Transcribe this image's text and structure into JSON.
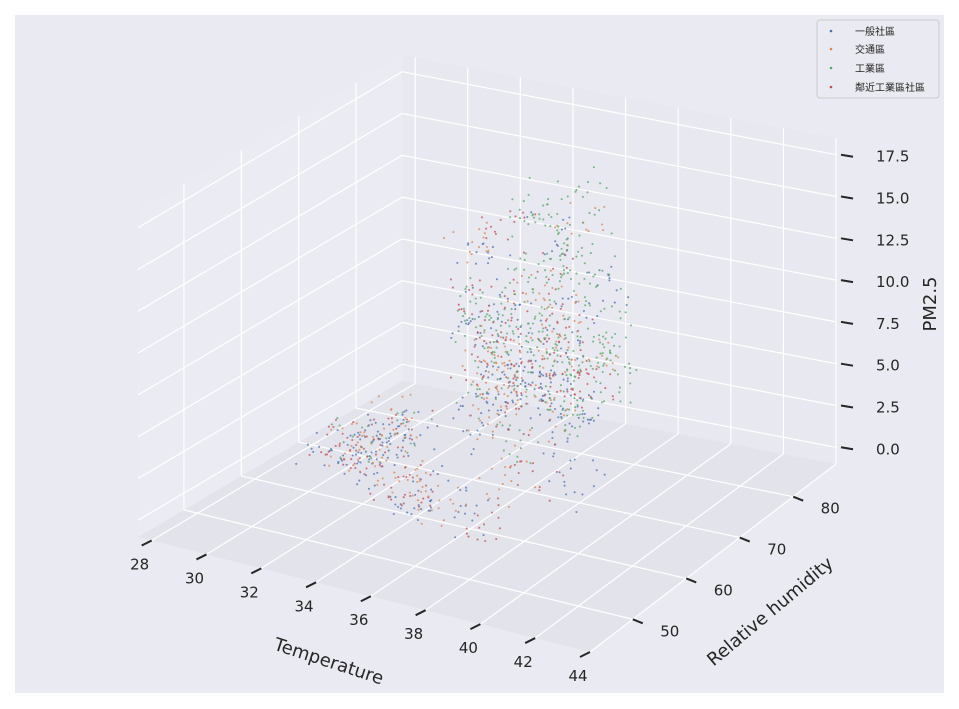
{
  "chart_data": {
    "type": "scatter",
    "projection": "3d",
    "title": "",
    "xlabel": "Temperature",
    "ylabel": "Relative humidity",
    "zlabel": "PM2.5",
    "xlim": [
      27.5,
      44
    ],
    "ylim": [
      42,
      88
    ],
    "zlim": [
      -1,
      18.5
    ],
    "x_ticks": [
      "28",
      "30",
      "32",
      "34",
      "36",
      "38",
      "40",
      "42",
      "44"
    ],
    "y_ticks": [
      "50",
      "60",
      "70",
      "80"
    ],
    "z_ticks": [
      "0.0",
      "2.5",
      "5.0",
      "7.5",
      "10.0",
      "12.5",
      "15.0",
      "17.5"
    ],
    "grid": true,
    "legend_position": "top-right",
    "series": [
      {
        "name": "一般社區",
        "color": "#4c72b0",
        "points": [
          [
            35.6,
            71,
            5.2
          ],
          [
            36.4,
            69,
            6.8
          ],
          [
            35.0,
            68,
            4.1
          ],
          [
            37.2,
            72,
            7.3
          ],
          [
            34.8,
            66,
            3.2
          ],
          [
            36.8,
            74,
            8.9
          ],
          [
            35.3,
            70,
            5.8
          ],
          [
            38.0,
            69,
            4.6
          ],
          [
            36.1,
            67,
            6.1
          ],
          [
            34.5,
            71,
            9.2
          ],
          [
            32.0,
            61,
            2.1
          ],
          [
            32.8,
            60,
            3.4
          ],
          [
            31.5,
            63,
            1.2
          ],
          [
            33.2,
            62,
            2.8
          ],
          [
            31.9,
            59,
            0.7
          ],
          [
            30.6,
            60,
            1.9
          ],
          [
            33.5,
            58,
            4.5
          ],
          [
            34.6,
            56,
            1.1
          ],
          [
            35.5,
            55,
            2.6
          ],
          [
            36.8,
            57,
            0.9
          ],
          [
            38.4,
            66,
            3.9
          ],
          [
            39.2,
            63,
            2.3
          ],
          [
            37.9,
            75,
            10.8
          ],
          [
            33.8,
            73,
            11.6
          ],
          [
            35.7,
            76,
            13.2
          ],
          [
            36.2,
            65,
            6.7
          ],
          [
            35.1,
            73,
            7.9
          ],
          [
            37.6,
            70,
            5.4
          ],
          [
            34.2,
            69,
            8.1
          ],
          [
            36.9,
            71,
            4.8
          ]
        ]
      },
      {
        "name": "交通區",
        "color": "#dd8452",
        "points": [
          [
            35.9,
            70,
            6.3
          ],
          [
            36.6,
            72,
            7.7
          ],
          [
            34.9,
            69,
            5.1
          ],
          [
            37.4,
            68,
            4.4
          ],
          [
            35.2,
            74,
            9.6
          ],
          [
            36.3,
            66,
            5.9
          ],
          [
            32.3,
            60,
            2.9
          ],
          [
            31.2,
            62,
            1.6
          ],
          [
            33.0,
            61,
            0.9
          ],
          [
            32.6,
            64,
            3.7
          ],
          [
            34.1,
            57,
            2.2
          ],
          [
            36.1,
            55,
            1.4
          ],
          [
            37.7,
            58,
            3.1
          ],
          [
            33.6,
            72,
            12.4
          ],
          [
            36.9,
            75,
            14.2
          ],
          [
            38.7,
            69,
            8.4
          ],
          [
            35.4,
            67,
            7.2
          ],
          [
            34.3,
            73,
            6.6
          ],
          [
            37.1,
            71,
            9.9
          ],
          [
            35.8,
            65,
            4.2
          ]
        ]
      },
      {
        "name": "工業區",
        "color": "#55a868",
        "points": [
          [
            35.8,
            71,
            7.6
          ],
          [
            36.5,
            73,
            8.4
          ],
          [
            37.3,
            72,
            6.2
          ],
          [
            36.0,
            70,
            9.1
          ],
          [
            37.8,
            74,
            7.1
          ],
          [
            35.4,
            69,
            8.8
          ],
          [
            36.7,
            68,
            5.7
          ],
          [
            38.2,
            71,
            6.9
          ],
          [
            34.9,
            72,
            10.3
          ],
          [
            36.2,
            75,
            11.4
          ],
          [
            37.5,
            76,
            9.7
          ],
          [
            35.6,
            74,
            12.1
          ],
          [
            36.9,
            70,
            8.2
          ],
          [
            38.6,
            73,
            7.8
          ],
          [
            37.0,
            67,
            6.4
          ],
          [
            34.4,
            70,
            7.3
          ],
          [
            35.1,
            75,
            13.6
          ],
          [
            37.9,
            69,
            5.1
          ],
          [
            36.4,
            77,
            10.6
          ],
          [
            33.9,
            71,
            9.4
          ],
          [
            39.0,
            72,
            6.1
          ],
          [
            36.1,
            72,
            15.8
          ],
          [
            32.9,
            63,
            3.3
          ],
          [
            31.6,
            61,
            2.6
          ],
          [
            35.3,
            66,
            4.9
          ],
          [
            37.2,
            64,
            3.8
          ],
          [
            38.8,
            66,
            5.3
          ],
          [
            36.6,
            78,
            11.9
          ],
          [
            34.7,
            68,
            8.6
          ],
          [
            37.6,
            73,
            16.7
          ]
        ]
      },
      {
        "name": "鄰近工業區社區",
        "color": "#c44e52",
        "points": [
          [
            36.2,
            70,
            6.1
          ],
          [
            35.5,
            72,
            7.2
          ],
          [
            37.0,
            71,
            5.6
          ],
          [
            34.6,
            68,
            6.9
          ],
          [
            36.8,
            73,
            8.3
          ],
          [
            32.1,
            62,
            2.4
          ],
          [
            31.4,
            60,
            1.5
          ],
          [
            32.9,
            63,
            3.1
          ],
          [
            33.4,
            59,
            0.8
          ],
          [
            30.9,
            61,
            2.2
          ],
          [
            34.8,
            56,
            1.9
          ],
          [
            37.3,
            57,
            0.6
          ],
          [
            38.1,
            62,
            2.9
          ],
          [
            35.9,
            74,
            11.1
          ],
          [
            33.7,
            70,
            9.8
          ],
          [
            36.5,
            67,
            4.7
          ],
          [
            37.7,
            69,
            7.4
          ],
          [
            35.0,
            71,
            8.6
          ],
          [
            38.5,
            70,
            6.2
          ],
          [
            34.1,
            75,
            12.9
          ]
        ]
      }
    ]
  }
}
